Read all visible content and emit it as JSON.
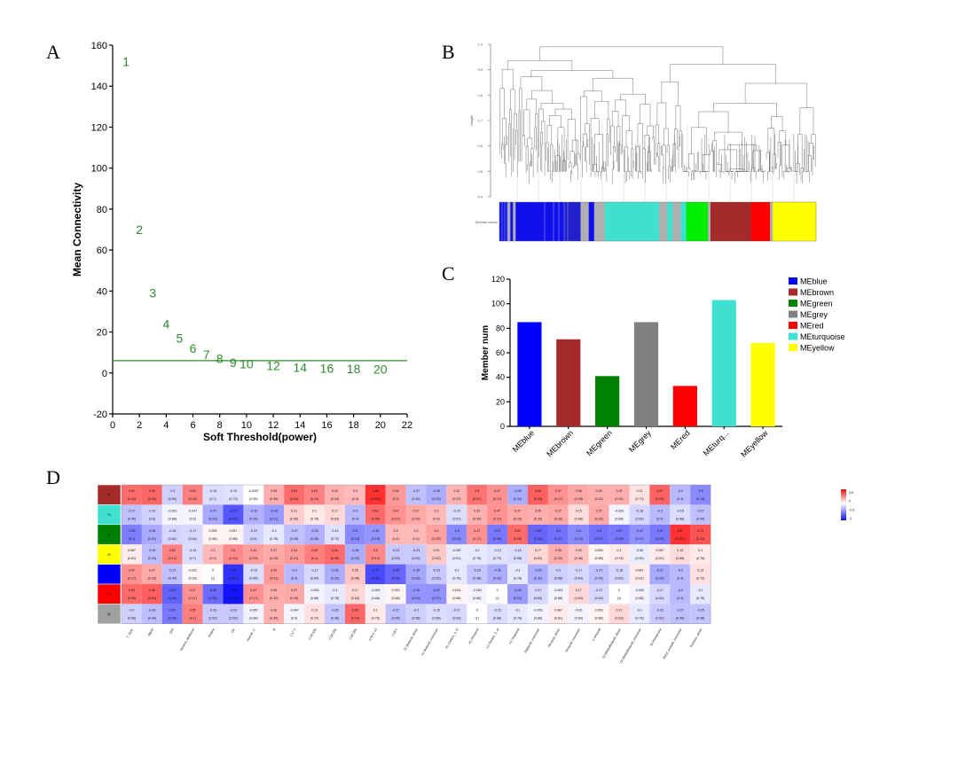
{
  "panels": {
    "a": "A",
    "b": "B",
    "c": "C",
    "d": "D"
  },
  "chart_data": [
    {
      "type": "scatter",
      "panel": "A",
      "xlabel": "Soft Threshold(power)",
      "ylabel": "Mean Connectivity",
      "xlim": [
        0,
        22
      ],
      "ylim": [
        -20,
        160
      ],
      "xticks": [
        0,
        2,
        4,
        6,
        8,
        10,
        12,
        14,
        16,
        18,
        20,
        22
      ],
      "yticks": [
        -20,
        0,
        20,
        40,
        60,
        80,
        100,
        120,
        140,
        160
      ],
      "hline": 6,
      "points": [
        {
          "x": 1,
          "y": 152,
          "label": "1"
        },
        {
          "x": 2,
          "y": 70,
          "label": "2"
        },
        {
          "x": 3,
          "y": 39,
          "label": "3"
        },
        {
          "x": 4,
          "y": 24,
          "label": "4"
        },
        {
          "x": 5,
          "y": 17,
          "label": "5"
        },
        {
          "x": 6,
          "y": 12,
          "label": "6"
        },
        {
          "x": 7,
          "y": 9,
          "label": "7"
        },
        {
          "x": 8,
          "y": 7,
          "label": "8"
        },
        {
          "x": 9,
          "y": 5,
          "label": "9"
        },
        {
          "x": 10,
          "y": 4.5,
          "label": "10"
        },
        {
          "x": 12,
          "y": 3.5,
          "label": "12"
        },
        {
          "x": 14,
          "y": 2.8,
          "label": "14"
        },
        {
          "x": 16,
          "y": 2.2,
          "label": "16"
        },
        {
          "x": 18,
          "y": 2,
          "label": "18"
        },
        {
          "x": 20,
          "y": 1.8,
          "label": "20"
        }
      ]
    },
    {
      "type": "dendrogram",
      "panel": "B",
      "ylabel": "Height",
      "yticks": [
        "1.0",
        "0.9",
        "0.8",
        "0.7",
        "0.6",
        "0.5",
        "0.4"
      ],
      "colorbar_label": "Module colors",
      "module_colors": [
        {
          "color": "#1010ee",
          "weight": 3
        },
        {
          "color": "#b0b0b0",
          "weight": 1
        },
        {
          "color": "#1010ee",
          "weight": 1
        },
        {
          "color": "#b0b0b0",
          "weight": 1
        },
        {
          "color": "#1010ee",
          "weight": 18
        },
        {
          "color": "#2020cc",
          "weight": 6
        },
        {
          "color": "#b0b0b0",
          "weight": 3
        },
        {
          "color": "#1010ee",
          "weight": 2
        },
        {
          "color": "#b0b0b0",
          "weight": 4
        },
        {
          "color": "#40e0d0",
          "weight": 20
        },
        {
          "color": "#b0b0b0",
          "weight": 3
        },
        {
          "color": "#40e0d0",
          "weight": 2
        },
        {
          "color": "#b0b0b0",
          "weight": 3
        },
        {
          "color": "#40e0d0",
          "weight": 2
        },
        {
          "color": "#00ee00",
          "weight": 8
        },
        {
          "color": "#b0b0b0",
          "weight": 1
        },
        {
          "color": "#a52a2a",
          "weight": 15
        },
        {
          "color": "#ff0000",
          "weight": 7
        },
        {
          "color": "#b0b0b0",
          "weight": 1
        },
        {
          "color": "#ffff00",
          "weight": 16
        }
      ]
    },
    {
      "type": "bar",
      "panel": "C",
      "ylabel": "Member num",
      "ylim": [
        0,
        120
      ],
      "yticks": [
        0,
        20,
        40,
        60,
        80,
        100,
        120
      ],
      "categories": [
        "MEblue",
        "MEbrown",
        "MEgreen",
        "MEgrey",
        "MEred",
        "MEturq...",
        "MEyellow"
      ],
      "values": [
        85,
        71,
        41,
        85,
        33,
        103,
        68
      ],
      "colors": [
        "#0000ff",
        "#a52a2a",
        "#008000",
        "#808080",
        "#ff0000",
        "#40e0d0",
        "#ffff00"
      ],
      "legend": [
        "MEblue",
        "MEbrown",
        "MEgreen",
        "MEgrey",
        "MEred",
        "MEturquoise",
        "MEyellow"
      ],
      "legend_position": "right"
    },
    {
      "type": "heatmap",
      "panel": "D",
      "row_colors": [
        "#a52a2a",
        "#40e0d0",
        "#008000",
        "#ffff00",
        "#0000ff",
        "#ff0000",
        "#a0a0a0"
      ],
      "row_names": [
        "br",
        "tq",
        "gr",
        "ye",
        "bl",
        "re",
        "gy"
      ],
      "columns": [
        "T_NOC",
        "NBA5",
        "SFA",
        "Alcohol_Methanol",
        "Proline",
        "Cls",
        "Vitamin_C",
        "B",
        "C17:1",
        "C18:1(9)",
        "C18:2(9)",
        "C18:3(9)",
        "C20:4_n3",
        "C18:1",
        "X1.Butanol_dimer",
        "X1.Butanol_monomer",
        "X1.Carbon_3_O",
        "X1.Pentanol",
        "X1.Penten_3_ol",
        "X1.Propanol",
        "Heptanal_monomer",
        "Hexanal_dimer",
        "Hexanal_monomer",
        "n.Octanal",
        "X2.Methylbutanal_dimer",
        "X2.Methylbutanal_monomer",
        "X2.Pentanone",
        "Ethyl_acetate_monomer",
        "Acetone_dimer"
      ],
      "legend_ticks": [
        "0.5",
        "0",
        "-0.5",
        "-1"
      ],
      "values": [
        [
          "0.62",
          "0.65",
          "-0.2",
          "0.55",
          "-0.15",
          "-0.13",
          "-0.0057",
          "0.35",
          "0.63",
          "0.53",
          "0.33",
          "0.3",
          "0.88",
          "0.44",
          "-0.27",
          "-0.35",
          "0.32",
          "0.6",
          "0.47",
          "-0.35",
          "0.68",
          "0.47",
          "0.38",
          "0.35",
          "0.35",
          "0.12",
          "0.67",
          "-0.3",
          "-0.5"
        ],
        [
          "-0.27",
          "-0.19",
          "-0.053",
          "-0.047",
          "-0.37",
          "-0.72",
          "-0.33",
          "-0.43",
          "0.21",
          "0.1",
          "0.17",
          "-0.3",
          "0.63",
          "0.47",
          "0.37",
          "0.3",
          "-0.15",
          "0.33",
          "0.47",
          "0.37",
          "0.35",
          "0.37",
          "0.15",
          "0.37",
          "-0.053",
          "-0.18",
          "-0.3",
          "-0.15",
          "-0.27"
        ],
        [
          "-0.55",
          "-0.36",
          "-0.18",
          "-0.17",
          "0.053",
          "0.057",
          "-0.19",
          "-0.1",
          "-0.27",
          "-0.33",
          "-0.13",
          "-0.5",
          "-0.45",
          "0.3",
          "0.3",
          "0.4",
          "-0.5",
          "0.47",
          "-0.57",
          "0.63",
          "-0.65",
          "-0.6",
          "-0.5",
          "-0.6",
          "-0.57",
          "-0.47",
          "-0.57",
          "0.87",
          "0.73"
        ],
        [
          "0.087",
          "-0.28",
          "0.53",
          "-0.15",
          "0.3",
          "0.5",
          "0.42",
          "0.37",
          "0.43",
          "0.55",
          "0.63",
          "-0.35",
          "0.5",
          "-0.23",
          "-0.23",
          "0.23",
          "-0.087",
          "-0.1",
          "-0.13",
          "-0.15",
          "0.17",
          "0.35",
          "0.25",
          "0.053",
          "0.1",
          "-0.08",
          "0.087",
          "0.15",
          "0.1"
        ],
        [
          "0.47",
          "0.37",
          "-0.27",
          "0.033",
          "0",
          "-0.87",
          "-0.15",
          "0.43",
          "-0.3",
          "-0.17",
          "-0.35",
          "0.25",
          "-0.77",
          "-0.65",
          "-0.38",
          "-0.23",
          "-0.1",
          "-0.25",
          "-0.35",
          "-0.1",
          "-0.35",
          "-0.2",
          "-0.17",
          "-0.27",
          "-0.18",
          "0.087",
          "-0.37",
          "-0.3",
          "0.13"
        ],
        [
          "0.63",
          "0.68",
          "-0.67",
          "0.47",
          "-0.63",
          "-1.02",
          "0.47",
          "0.35",
          "0.37",
          "-0.053",
          "-0.1",
          "0.17",
          "-0.053",
          "0.053",
          "-0.45",
          "-0.47",
          "0.053",
          "-0.053",
          "0",
          "-0.43",
          "-0.17",
          "-0.053",
          "0.17",
          "-0.17",
          "0",
          "-0.053",
          "-0.17",
          "-0.3",
          "-0.1"
        ],
        [
          "-0.2",
          "-0.28",
          "-0.57",
          "0.55",
          "-0.23",
          "-0.23",
          "-0.057",
          "0.33",
          "-0.047",
          "0.13",
          "-0.25",
          "0.65",
          "0.1",
          "-0.27",
          "-0.2",
          "-0.15",
          "-0.17",
          "0",
          "-0.15",
          "-0.1",
          "-0.053",
          "0.087",
          "-0.05",
          "0.053",
          "0.17",
          "-0.1",
          "-0.23",
          "-0.27",
          "-0.25"
        ]
      ],
      "pvalues": [
        [
          "(0.04)",
          "(0.02)",
          "(0.59)",
          "(0.05)",
          "(0.7)",
          "(0.72)",
          "(0.99)",
          "(0.35)",
          "(0.04)",
          "(0.12)",
          "(0.34)",
          "(0.4)",
          "(0.001)",
          "(0.2)",
          "(0.45)",
          "(0.32)",
          "(0.37)",
          "(0.07)",
          "(0.17)",
          "(0.32)",
          "(0.03)",
          "(0.17)",
          "(0.28)",
          "(0.32)",
          "(0.32)",
          "(0.73)",
          "(0.03)",
          "(0.4)",
          "(0.14)"
        ],
        [
          "(0.45)",
          "(0.6)",
          "(0.88)",
          "(0.9)",
          "(0.29)",
          "(0.02)",
          "(0.35)",
          "(0.21)",
          "(0.56)",
          "(0.78)",
          "(0.63)",
          "(0.4)",
          "(0.05)",
          "(0.17)",
          "(0.29)",
          "(0.4)",
          "(0.67)",
          "(0.35)",
          "(0.17)",
          "(0.29)",
          "(0.32)",
          "(0.29)",
          "(0.68)",
          "(0.29)",
          "(0.88)",
          "(0.62)",
          "(0.4)",
          "(0.68)",
          "(0.45)"
        ],
        [
          "(0.1)",
          "(0.31)",
          "(0.62)",
          "(0.64)",
          "(0.88)",
          "(0.88)",
          "(0.6)",
          "(0.78)",
          "(0.45)",
          "(0.35)",
          "(0.72)",
          "(0.14)",
          "(0.19)",
          "(0.4)",
          "(0.4)",
          "(0.25)",
          "(0.14)",
          "(0.17)",
          "(0.09)",
          "(0.05)",
          "(0.04)",
          "(0.07)",
          "(0.14)",
          "(0.07)",
          "(0.09)",
          "(0.17)",
          "(0.09)",
          "(0.001)",
          "(0.02)"
        ],
        [
          "(0.81)",
          "(0.44)",
          "(0.12)",
          "(0.7)",
          "(0.4)",
          "(0.14)",
          "(0.23)",
          "(0.29)",
          "(0.21)",
          "(0.1)",
          "(0.05)",
          "(0.32)",
          "(0.14)",
          "(0.52)",
          "(0.52)",
          "(0.52)",
          "(0.81)",
          "(0.78)",
          "(0.72)",
          "(0.68)",
          "(0.63)",
          "(0.32)",
          "(0.48)",
          "(0.88)",
          "(0.78)",
          "(0.82)",
          "(0.81)",
          "(0.68)",
          "(0.78)"
        ],
        [
          "(0.17)",
          "(0.29)",
          "(0.45)",
          "(0.93)",
          "(1)",
          "(0.001)",
          "(0.68)",
          "(0.21)",
          "(0.4)",
          "(0.64)",
          "(0.32)",
          "(0.48)",
          "(0.01)",
          "(0.04)",
          "(0.28)",
          "(0.52)",
          "(0.78)",
          "(0.48)",
          "(0.32)",
          "(0.78)",
          "(0.32)",
          "(0.58)",
          "(0.64)",
          "(0.45)",
          "(0.62)",
          "(0.81)",
          "(0.29)",
          "(0.4)",
          "(0.72)"
        ],
        [
          "(0.05)",
          "(0.03)",
          "(0.04)",
          "(0.17)",
          "(0.05)",
          "(0.001)",
          "(0.17)",
          "(0.32)",
          "(0.29)",
          "(0.88)",
          "(0.78)",
          "(0.63)",
          "(0.88)",
          "(0.88)",
          "(0.19)",
          "(0.17)",
          "(0.88)",
          "(0.88)",
          "(1)",
          "(0.21)",
          "(0.63)",
          "(0.88)",
          "(0.63)",
          "(0.63)",
          "(1)",
          "(0.88)",
          "(0.63)",
          "(0.4)",
          "(0.78)"
        ],
        [
          "(0.58)",
          "(0.44)",
          "(0.09)",
          "(0.1)",
          "(0.52)",
          "(0.52)",
          "(0.88)",
          "(0.35)",
          "(0.9)",
          "(0.72)",
          "(0.48)",
          "(0.04)",
          "(0.78)",
          "(0.45)",
          "(0.58)",
          "(0.68)",
          "(0.63)",
          "(1)",
          "(0.68)",
          "(0.78)",
          "(0.88)",
          "(0.81)",
          "(0.89)",
          "(0.88)",
          "(0.63)",
          "(0.78)",
          "(0.52)",
          "(0.45)",
          "(0.48)"
        ]
      ]
    }
  ]
}
